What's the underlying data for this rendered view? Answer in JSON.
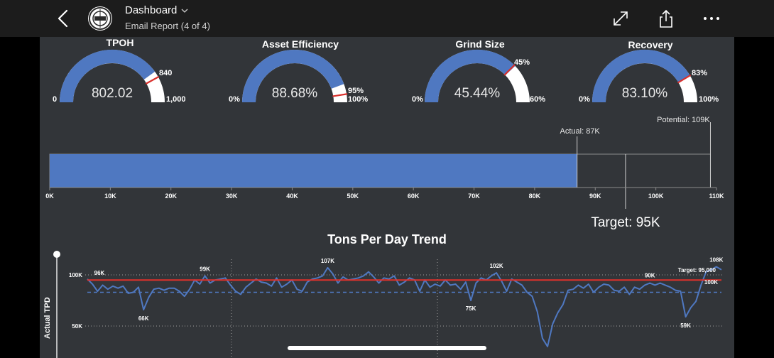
{
  "header": {
    "title": "Dashboard",
    "subtitle": "Email Report (4 of 4)"
  },
  "gauges": [
    {
      "title": "TPOH",
      "value": "802.02",
      "min": "0",
      "max": "1,000",
      "target": "840",
      "fraction": 0.802,
      "target_fraction": 0.84
    },
    {
      "title": "Asset Efficiency",
      "value": "88.68%",
      "min": "0%",
      "max": "100%",
      "target": "95%",
      "fraction": 0.8868,
      "target_fraction": 0.95
    },
    {
      "title": "Grind Size",
      "value": "45.44%",
      "min": "0%",
      "max": "60%",
      "target": "45%",
      "fraction": 0.757,
      "target_fraction": 0.75
    },
    {
      "title": "Recovery",
      "value": "83.10%",
      "min": "0%",
      "max": "100%",
      "target": "83%",
      "fraction": 0.831,
      "target_fraction": 0.83
    }
  ],
  "bullet": {
    "actual_label": "Actual: 87K",
    "potential_label": "Potential: 109K",
    "target_label": "Target: 95K",
    "actual": 87,
    "potential": 109,
    "target": 95,
    "axis_max": 110,
    "ticks": [
      "0K",
      "10K",
      "20K",
      "30K",
      "40K",
      "50K",
      "60K",
      "70K",
      "80K",
      "90K",
      "100K",
      "110K"
    ]
  },
  "trend": {
    "title": "Tons Per Day Trend",
    "ylabel": "Actual TPD",
    "y_ticks": [
      "100K",
      "50K"
    ],
    "target_label": "Target: 95,000",
    "ref_label": "100K",
    "annotations": [
      "96K",
      "66K",
      "99K",
      "107K",
      "75K",
      "102K",
      "90K",
      "59K",
      "108K"
    ],
    "series": [
      96,
      91,
      84,
      90,
      86,
      89,
      87,
      89,
      82,
      83,
      88,
      66,
      78,
      86,
      87,
      85,
      87,
      87,
      84,
      79,
      86,
      95,
      91,
      99,
      92,
      95,
      96,
      97,
      90,
      84,
      81,
      88,
      92,
      96,
      93,
      92,
      89,
      97,
      88,
      91,
      95,
      86,
      84,
      93,
      96,
      97,
      99,
      107,
      101,
      92,
      98,
      95,
      96,
      97,
      99,
      103,
      98,
      92,
      97,
      96,
      99,
      90,
      93,
      97,
      95,
      84,
      95,
      88,
      91,
      89,
      95,
      90,
      91,
      86,
      93,
      75,
      92,
      97,
      95,
      99,
      102,
      94,
      84,
      96,
      93,
      90,
      83,
      79,
      64,
      38,
      30,
      52,
      63,
      71,
      85,
      86,
      90,
      87,
      91,
      83,
      88,
      91,
      90,
      85,
      84,
      88,
      81,
      88,
      86,
      90,
      92,
      90,
      92,
      90,
      88,
      85,
      84,
      59,
      68,
      74,
      90,
      103,
      105,
      108,
      105
    ]
  }
}
